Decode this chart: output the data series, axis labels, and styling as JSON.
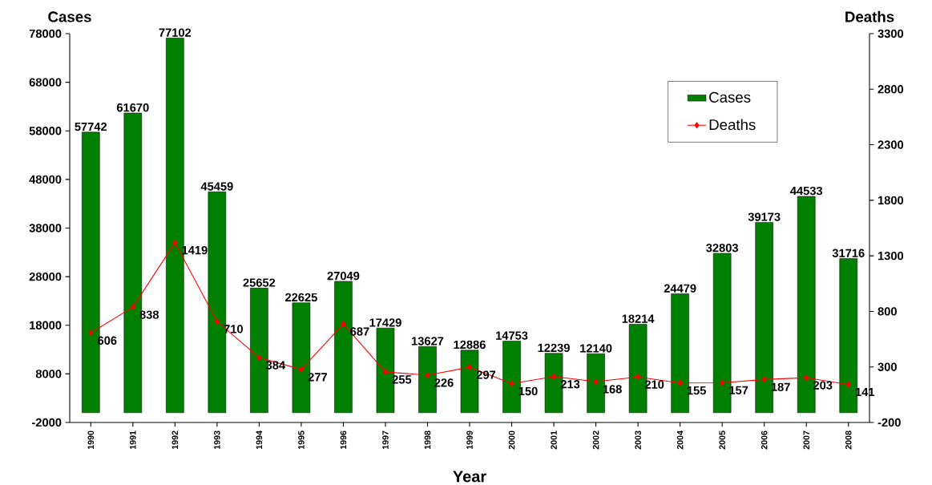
{
  "chart_data": {
    "type": "bar",
    "xlabel": "Year",
    "ylabel": "Cases",
    "y2label": "Deaths",
    "categories": [
      "1990",
      "1991",
      "1992",
      "1993",
      "1994",
      "1995",
      "1996",
      "1997",
      "1998",
      "1999",
      "2000",
      "2001",
      "2002",
      "2003",
      "2004",
      "2005",
      "2006",
      "2007",
      "2008"
    ],
    "series": [
      {
        "name": "Cases",
        "color": "#008000",
        "values": [
          57742,
          61670,
          77102,
          45459,
          25652,
          22625,
          27049,
          17429,
          13627,
          12886,
          14753,
          12239,
          12140,
          18214,
          24479,
          32803,
          39173,
          44533,
          31716
        ]
      },
      {
        "name": "Deaths",
        "type": "line",
        "axis": "y2",
        "color": "#ff0000",
        "marker": "diamond",
        "values": [
          606,
          838,
          1419,
          710,
          384,
          277,
          687,
          255,
          226,
          297,
          150,
          213,
          168,
          210,
          155,
          157,
          187,
          203,
          141
        ]
      }
    ],
    "ylim": [
      -2000,
      78000
    ],
    "yticks": [
      -2000,
      8000,
      18000,
      28000,
      38000,
      48000,
      58000,
      68000,
      78000
    ],
    "y2lim": [
      -200,
      3300
    ],
    "y2ticks": [
      -200,
      300,
      800,
      1300,
      1800,
      2300,
      2800,
      3300
    ],
    "data_labels": true,
    "legend": "top right"
  }
}
